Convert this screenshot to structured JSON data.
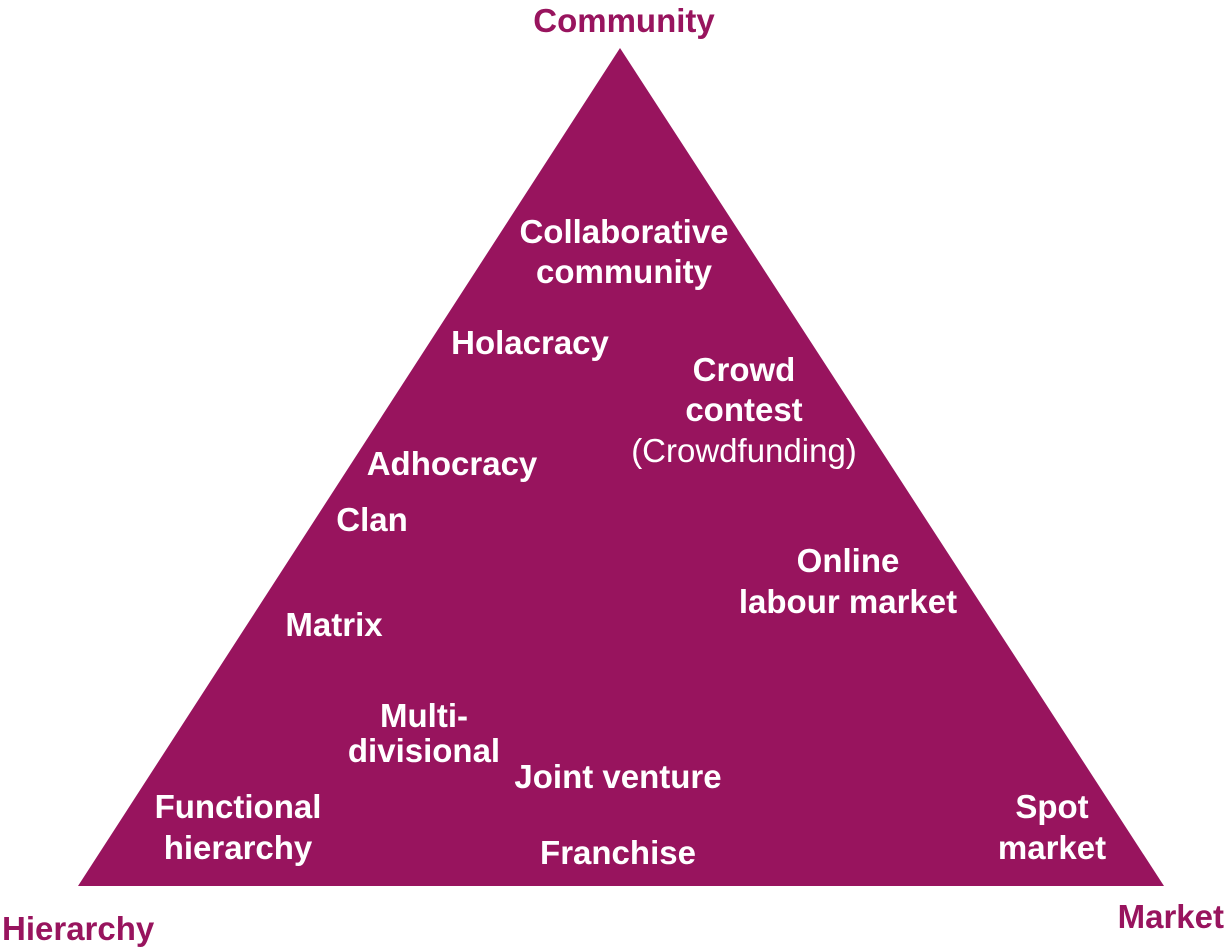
{
  "colors": {
    "triangle_fill": "#98145e",
    "corner_label": "#98145e",
    "inner_label": "#ffffff"
  },
  "corners": {
    "top": "Community",
    "left": "Hierarchy",
    "right": "Market"
  },
  "forms": {
    "collaborative_community": [
      "Collaborative",
      "community"
    ],
    "holacracy": [
      "Holacracy"
    ],
    "crowd_contest": [
      "Crowd",
      "contest"
    ],
    "crowdfunding": "(Crowdfunding)",
    "adhocracy": [
      "Adhocracy"
    ],
    "clan": [
      "Clan"
    ],
    "online_labour_market": [
      "Online",
      "labour market"
    ],
    "matrix": [
      "Matrix"
    ],
    "multi_divisional": [
      "Multi-",
      "divisional"
    ],
    "joint_venture": [
      "Joint venture"
    ],
    "functional_hierarchy": [
      "Functional",
      "hierarchy"
    ],
    "franchise": [
      "Franchise"
    ],
    "spot_market": [
      "Spot",
      "market"
    ]
  }
}
